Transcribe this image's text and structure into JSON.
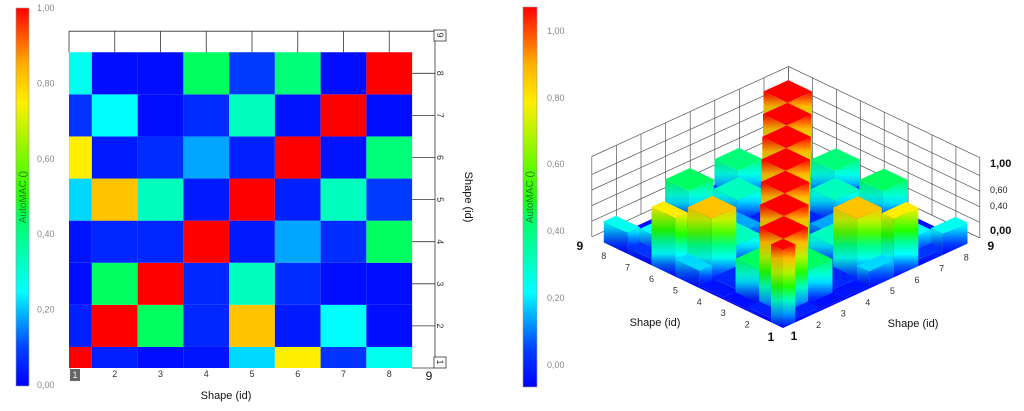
{
  "chart_data": [
    {
      "type": "heatmap",
      "xlabel": "Shape (id)",
      "ylabel": "Shape (id)",
      "colorbar_label": "AutoMAC ()",
      "colorbar_ticks": [
        "0,00",
        "0,20",
        "0,40",
        "0,60",
        "0,80",
        "1,00"
      ],
      "colorbar_range": [
        0,
        1
      ],
      "x_ticks": [
        "1",
        "2",
        "3",
        "4",
        "5",
        "6",
        "7",
        "8",
        "9"
      ],
      "y_ticks": [
        "1",
        "2",
        "3",
        "4",
        "5",
        "6",
        "7",
        "8",
        "9"
      ],
      "xlim": [
        1,
        9
      ],
      "ylim": [
        1,
        9
      ],
      "colormap": "jet",
      "categories": [
        1,
        2,
        3,
        4,
        5,
        6,
        7,
        8
      ],
      "matrix": [
        [
          1.0,
          0.05,
          0.02,
          0.03,
          0.22,
          0.75,
          0.08,
          0.27
        ],
        [
          0.05,
          1.0,
          0.45,
          0.06,
          0.82,
          0.04,
          0.25,
          0.02
        ],
        [
          0.02,
          0.45,
          1.0,
          0.06,
          0.33,
          0.07,
          0.02,
          0.02
        ],
        [
          0.03,
          0.06,
          0.06,
          1.0,
          0.04,
          0.18,
          0.07,
          0.45
        ],
        [
          0.22,
          0.82,
          0.33,
          0.04,
          1.0,
          0.05,
          0.33,
          0.09
        ],
        [
          0.75,
          0.04,
          0.07,
          0.18,
          0.05,
          1.0,
          0.03,
          0.42
        ],
        [
          0.08,
          0.25,
          0.02,
          0.07,
          0.33,
          0.03,
          1.0,
          0.02
        ],
        [
          0.27,
          0.02,
          0.02,
          0.45,
          0.09,
          0.42,
          0.02,
          1.0
        ]
      ]
    },
    {
      "type": "bar3d",
      "xlabel": "Shape (id)",
      "ylabel": "Shape (id)",
      "colorbar_label": "AutoMAC ()",
      "colorbar_ticks": [
        "0,00",
        "0,20",
        "0,40",
        "0,60",
        "0,80",
        "1,00"
      ],
      "z_ticks": [
        "0,00",
        "0,40",
        "0,60",
        "1,00"
      ],
      "x_ticks": [
        "1",
        "2",
        "3",
        "4",
        "5",
        "6",
        "7",
        "8",
        "9"
      ],
      "y_ticks": [
        "1",
        "2",
        "3",
        "4",
        "5",
        "6",
        "7",
        "8",
        "9"
      ],
      "colormap": "jet",
      "matrix_source": "same as heatmap"
    }
  ],
  "colormap_stops": [
    [
      0,
      "#0000ff"
    ],
    [
      0.1,
      "#0040ff"
    ],
    [
      0.25,
      "#00ffff"
    ],
    [
      0.45,
      "#00ff60"
    ],
    [
      0.5,
      "#20ff00"
    ],
    [
      0.75,
      "#ffee00"
    ],
    [
      0.85,
      "#ffb000"
    ],
    [
      1,
      "#ff0000"
    ]
  ]
}
